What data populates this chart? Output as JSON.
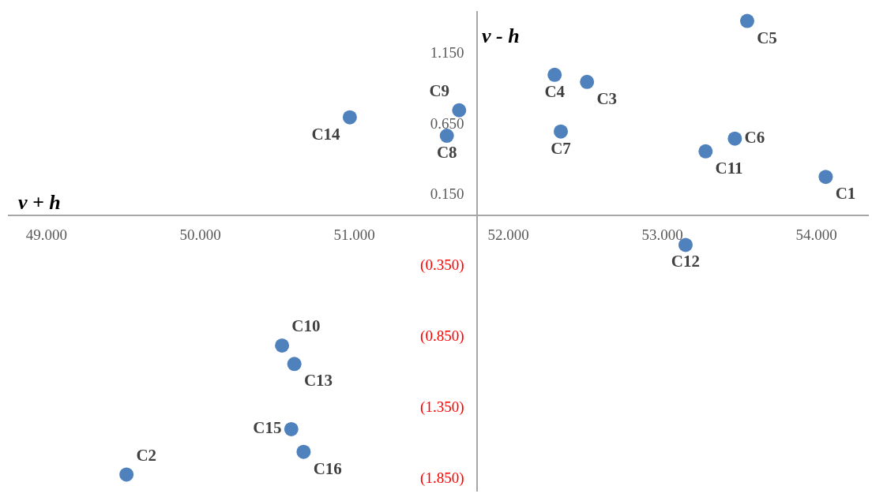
{
  "chart_data": {
    "type": "scatter",
    "xlabel": "v + h",
    "ylabel": "v - h",
    "x": [
      54.06,
      49.52,
      52.51,
      52.3,
      53.55,
      53.47,
      52.34,
      51.6,
      51.68,
      50.53,
      53.28,
      53.15,
      50.61,
      50.97,
      50.59,
      50.67
    ],
    "values": [
      0.27,
      -1.83,
      0.94,
      0.99,
      1.37,
      0.54,
      0.59,
      0.56,
      0.74,
      -0.92,
      0.45,
      -0.21,
      -1.05,
      0.69,
      -1.51,
      -1.67
    ],
    "value_labels": [
      "C1",
      "C2",
      "C3",
      "C4",
      "C5",
      "C6",
      "C7",
      "C8",
      "C9",
      "C10",
      "C11",
      "C12",
      "C13",
      "C14",
      "C15",
      "C16"
    ],
    "color": "#4f81bd",
    "marker": "circle",
    "grid": false,
    "xlim": [
      48.75,
      54.34
    ],
    "ylim": [
      -1.95,
      1.44
    ],
    "xticks": [
      {
        "value": 49,
        "label": "49.000"
      },
      {
        "value": 50,
        "label": "50.000"
      },
      {
        "value": 51,
        "label": "51.000"
      },
      {
        "value": 52,
        "label": "52.000"
      },
      {
        "value": 53,
        "label": "53.000"
      },
      {
        "value": 54,
        "label": "54.000"
      }
    ],
    "yticks": [
      {
        "value": 1.15,
        "label": "1.150"
      },
      {
        "value": 0.65,
        "label": "0.650"
      },
      {
        "value": 0.15,
        "label": "0.150"
      },
      {
        "value": -0.35,
        "label": "(0.350)"
      },
      {
        "value": -0.85,
        "label": "(0.850)"
      },
      {
        "value": -1.35,
        "label": "(1.350)"
      },
      {
        "value": -1.85,
        "label": "(1.850)"
      }
    ]
  }
}
